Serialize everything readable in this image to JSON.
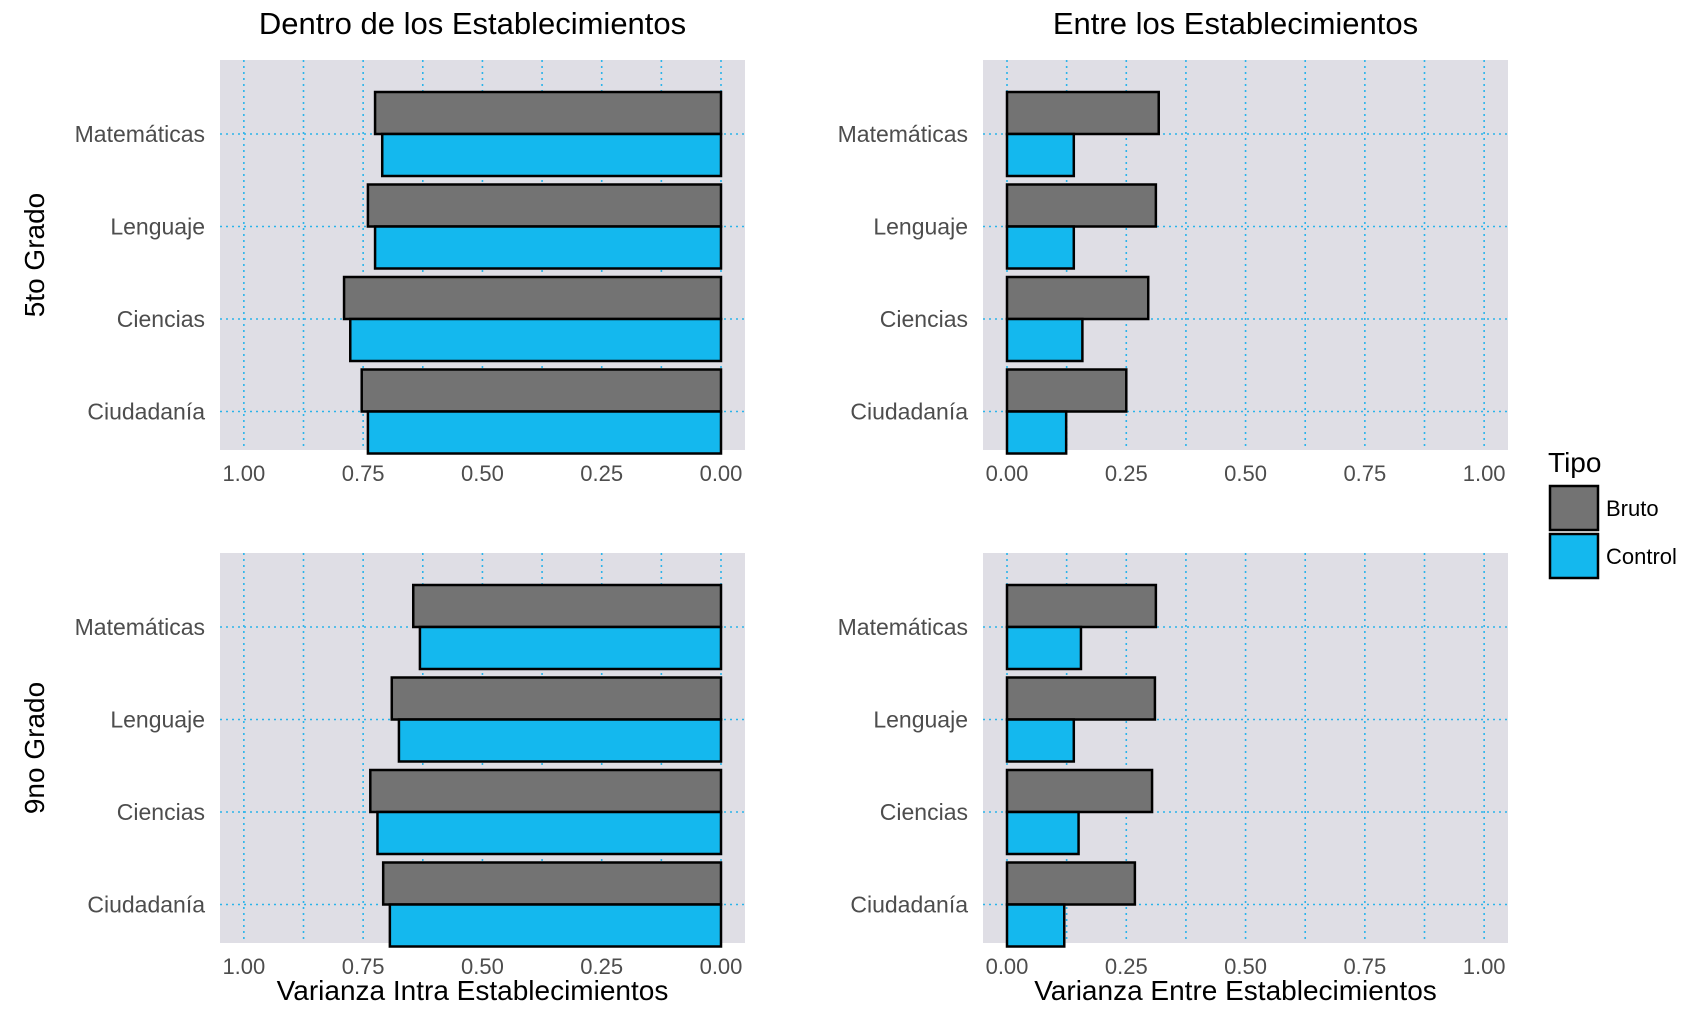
{
  "chart_data": [
    {
      "type": "bar",
      "panel": "within-5to",
      "title": "Dentro de los Establecimientos",
      "row_label": "5to Grado",
      "xlabel": "",
      "orientation": "horizontal",
      "x_reversed": true,
      "xlim": [
        0,
        1.05
      ],
      "x_ticks": [
        "1.00",
        "0.75",
        "0.50",
        "0.25",
        "0.00"
      ],
      "categories": [
        "Matemáticas",
        "Lenguaje",
        "Ciencias",
        "Ciudadanía"
      ],
      "series": [
        {
          "name": "Bruto",
          "values": [
            0.725,
            0.74,
            0.79,
            0.753
          ]
        },
        {
          "name": "Control",
          "values": [
            0.71,
            0.725,
            0.777,
            0.74
          ]
        }
      ]
    },
    {
      "type": "bar",
      "panel": "between-5to",
      "title": "Entre los Establecimientos",
      "row_label": "",
      "xlabel": "",
      "orientation": "horizontal",
      "x_reversed": false,
      "xlim": [
        0,
        1.05
      ],
      "x_ticks": [
        "0.00",
        "0.25",
        "0.50",
        "0.75",
        "1.00"
      ],
      "categories": [
        "Matemáticas",
        "Lenguaje",
        "Ciencias",
        "Ciudadanía"
      ],
      "series": [
        {
          "name": "Bruto",
          "values": [
            0.318,
            0.312,
            0.296,
            0.25
          ]
        },
        {
          "name": "Control",
          "values": [
            0.14,
            0.14,
            0.158,
            0.124
          ]
        }
      ]
    },
    {
      "type": "bar",
      "panel": "within-9no",
      "title": "",
      "row_label": "9no Grado",
      "xlabel": "Varianza Intra Establecimientos",
      "orientation": "horizontal",
      "x_reversed": true,
      "xlim": [
        0,
        1.05
      ],
      "x_ticks": [
        "1.00",
        "0.75",
        "0.50",
        "0.25",
        "0.00"
      ],
      "categories": [
        "Matemáticas",
        "Lenguaje",
        "Ciencias",
        "Ciudadanía"
      ],
      "series": [
        {
          "name": "Bruto",
          "values": [
            0.645,
            0.69,
            0.735,
            0.708
          ]
        },
        {
          "name": "Control",
          "values": [
            0.631,
            0.675,
            0.72,
            0.694
          ]
        }
      ]
    },
    {
      "type": "bar",
      "panel": "between-9no",
      "title": "",
      "row_label": "",
      "xlabel": "Varianza Entre Establecimientos",
      "orientation": "horizontal",
      "x_reversed": false,
      "xlim": [
        0,
        1.05
      ],
      "x_ticks": [
        "0.00",
        "0.25",
        "0.50",
        "0.75",
        "1.00"
      ],
      "categories": [
        "Matemáticas",
        "Lenguaje",
        "Ciencias",
        "Ciudadanía"
      ],
      "series": [
        {
          "name": "Bruto",
          "values": [
            0.312,
            0.31,
            0.304,
            0.268
          ]
        },
        {
          "name": "Control",
          "values": [
            0.155,
            0.14,
            0.15,
            0.12
          ]
        }
      ]
    }
  ],
  "legend": {
    "title": "Tipo",
    "placement": "right",
    "items": [
      {
        "label": "Bruto",
        "color": "#737373"
      },
      {
        "label": "Control",
        "color": "#14b8ee"
      }
    ]
  },
  "style": {
    "panel_bg": "#dfdee5",
    "grid_color": "#2bb3ea",
    "bar_stroke": "#000000"
  }
}
